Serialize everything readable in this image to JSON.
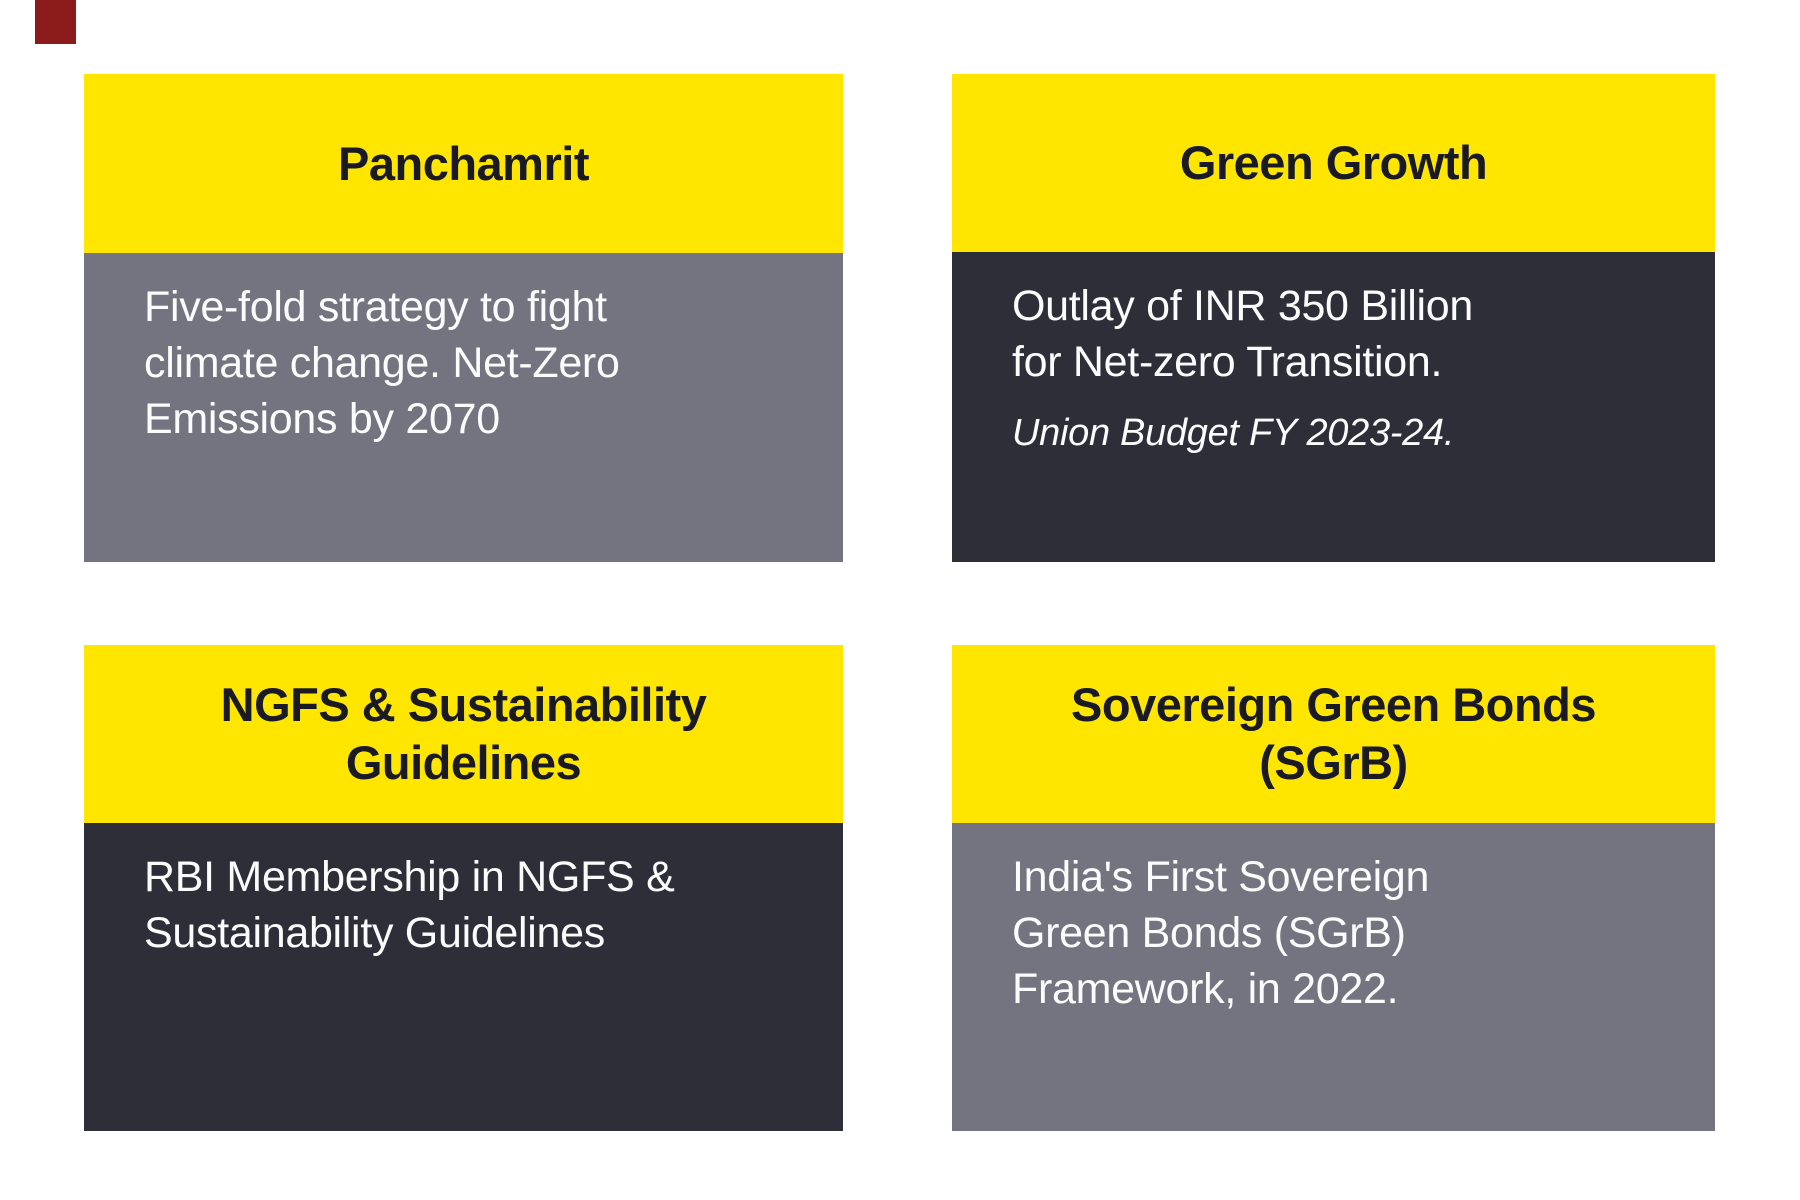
{
  "colors": {
    "background": "#ffffff",
    "header_yellow": "#ffe600",
    "body_gray": "#747480",
    "body_dark": "#2e2e38",
    "title_text": "#1a1a24",
    "body_text": "#fbfbfb",
    "corner_marker_red": "#8b1b1b"
  },
  "cards": {
    "panchamrit": {
      "title": "Panchamrit",
      "body": "Five-fold strategy to fight\nclimate change. Net-Zero\nEmissions by 2070"
    },
    "green_growth": {
      "title": "Green Growth",
      "body": "Outlay of INR 350 Billion\nfor Net-zero Transition.",
      "note": "Union Budget FY 2023-24."
    },
    "ngfs": {
      "title": "NGFS & Sustainability\nGuidelines",
      "body": "RBI Membership in NGFS &\nSustainability Guidelines"
    },
    "sgrb": {
      "title": "Sovereign Green Bonds\n(SGrB)",
      "body": "India's First Sovereign\nGreen Bonds (SGrB)\nFramework, in 2022."
    }
  }
}
